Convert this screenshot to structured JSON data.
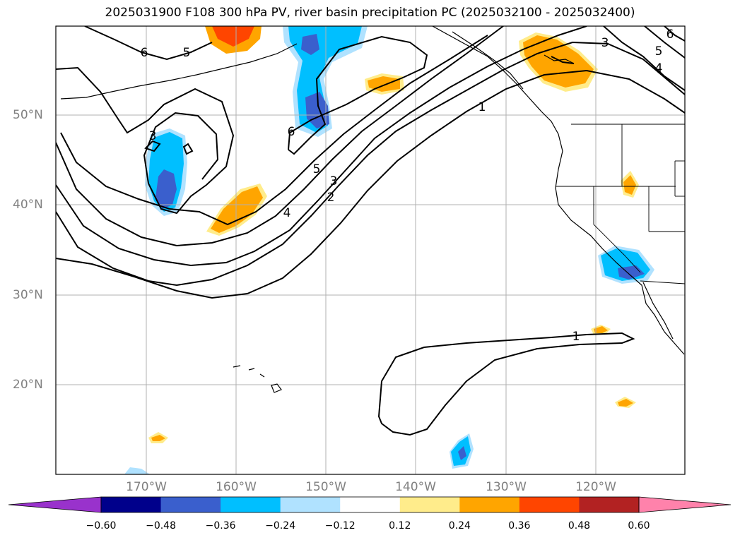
{
  "title": "2025031900 F108 300 hPa PV, river basin precipitation PC (2025032100 - 2025032400)",
  "lat_labels": [
    "50°N",
    "40°N",
    "30°N",
    "20°N"
  ],
  "lon_labels": [
    "170°W",
    "160°W",
    "150°W",
    "140°W",
    "130°W",
    "120°W"
  ],
  "contour_labels": [
    "1",
    "2",
    "3",
    "4",
    "5",
    "6"
  ],
  "colorbar": {
    "ticks": [
      "−0.60",
      "−0.48",
      "−0.36",
      "−0.24",
      "−0.12",
      "0.12",
      "0.24",
      "0.36",
      "0.48",
      "0.60"
    ],
    "colors": [
      "#9932cc",
      "#00008b",
      "#3a5fcd",
      "#00bfff",
      "#b0e2ff",
      "#ffffff",
      "#ffec8b",
      "#ffa500",
      "#ff4500",
      "#b22222",
      "#ff82ab"
    ]
  },
  "colors": {
    "axis_label": "#808080",
    "contour": "#000000"
  }
}
